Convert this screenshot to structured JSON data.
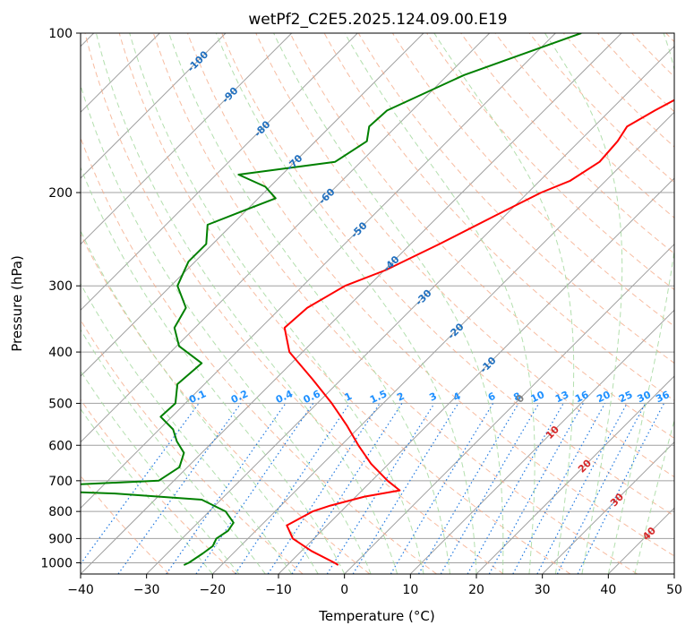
{
  "chart_data": {
    "type": "line",
    "subtype": "skew-t log-p diagram",
    "title": "wetPf2_C2E5.2025.124.09.00.E19",
    "xlabel": "Temperature (°C)",
    "ylabel": "Pressure (hPa)",
    "xlim": [
      -40,
      50
    ],
    "ylim": [
      1050,
      100
    ],
    "y_scale": "log",
    "grid": true,
    "x_ticks": [
      -40,
      -30,
      -20,
      -10,
      0,
      10,
      20,
      30,
      40,
      50
    ],
    "x_tick_labels": [
      "−40",
      "−30",
      "−20",
      "−10",
      "0",
      "10",
      "20",
      "30",
      "40",
      "50"
    ],
    "y_ticks": [
      100,
      200,
      300,
      400,
      500,
      600,
      700,
      800,
      900,
      1000
    ],
    "y_tick_labels": [
      "100",
      "200",
      "300",
      "400",
      "500",
      "600",
      "700",
      "800",
      "900",
      "1000"
    ],
    "colors": {
      "temperature": "#ff0000",
      "dewpoint": "#008000",
      "isotherms": "#a0a0a0",
      "dry_adiabats": "#f4a582",
      "moist_adiabats": "#a6d9a0",
      "mixing_ratio": "#1f78e0",
      "isotherm_label_cold": "#1f6fbf",
      "isotherm_label_warm": "#d62728",
      "isotherm_label_zero": "#808080",
      "mixing_ratio_label": "#1e90ff"
    },
    "series": [
      {
        "key": "temperature",
        "points": [
          [
            100,
            -17.1
          ],
          [
            110,
            -18.4
          ],
          [
            125,
            -19.8
          ],
          [
            140,
            -23.2
          ],
          [
            150,
            -25.0
          ],
          [
            160,
            -24.2
          ],
          [
            175,
            -23.8
          ],
          [
            190,
            -25.4
          ],
          [
            200,
            -28.0
          ],
          [
            220,
            -31.3
          ],
          [
            250,
            -35.6
          ],
          [
            280,
            -39.8
          ],
          [
            300,
            -43.6
          ],
          [
            330,
            -46.0
          ],
          [
            360,
            -46.4
          ],
          [
            400,
            -42.0
          ],
          [
            450,
            -34.4
          ],
          [
            500,
            -27.8
          ],
          [
            550,
            -22.2
          ],
          [
            600,
            -17.4
          ],
          [
            650,
            -12.7
          ],
          [
            700,
            -7.6
          ],
          [
            730,
            -4.3
          ],
          [
            750,
            -8.7
          ],
          [
            780,
            -12.5
          ],
          [
            800,
            -14.3
          ],
          [
            850,
            -16.1
          ],
          [
            900,
            -13.2
          ],
          [
            950,
            -8.5
          ],
          [
            1000,
            -3.2
          ],
          [
            1010,
            -2.3
          ]
        ]
      },
      {
        "key": "dewpoint",
        "points": [
          [
            100,
            -46.1
          ],
          [
            120,
            -57.5
          ],
          [
            140,
            -63.8
          ],
          [
            150,
            -64.1
          ],
          [
            160,
            -62.2
          ],
          [
            175,
            -63.9
          ],
          [
            185,
            -76.6
          ],
          [
            195,
            -70.7
          ],
          [
            205,
            -67.4
          ],
          [
            215,
            -70.0
          ],
          [
            230,
            -73.7
          ],
          [
            250,
            -71.0
          ],
          [
            270,
            -71.0
          ],
          [
            300,
            -69.0
          ],
          [
            330,
            -64.4
          ],
          [
            360,
            -63.1
          ],
          [
            390,
            -59.6
          ],
          [
            420,
            -53.6
          ],
          [
            460,
            -54.1
          ],
          [
            500,
            -51.5
          ],
          [
            530,
            -51.7
          ],
          [
            560,
            -47.9
          ],
          [
            590,
            -45.5
          ],
          [
            620,
            -42.7
          ],
          [
            660,
            -41.2
          ],
          [
            700,
            -42.3
          ],
          [
            725,
            -68.3
          ],
          [
            740,
            -47.0
          ],
          [
            760,
            -32.9
          ],
          [
            800,
            -27.5
          ],
          [
            840,
            -24.6
          ],
          [
            870,
            -24.2
          ],
          [
            900,
            -24.8
          ],
          [
            930,
            -24.2
          ],
          [
            960,
            -24.6
          ],
          [
            1000,
            -25.3
          ],
          [
            1010,
            -25.7
          ]
        ]
      }
    ],
    "isotherm_labels": {
      "cold": [
        "-100",
        "-90",
        "-80",
        "-70",
        "-60",
        "-50",
        "-40",
        "-30",
        "-20",
        "-10"
      ],
      "zero": "0",
      "warm": [
        "10",
        "20",
        "30",
        "40"
      ]
    },
    "mixing_ratio_labels": [
      "0.1",
      "0.2",
      "0.4",
      "0.6",
      "1",
      "1.5",
      "2",
      "3",
      "4",
      "6",
      "8",
      "10",
      "13",
      "16",
      "20",
      "25",
      "30",
      "36"
    ]
  }
}
